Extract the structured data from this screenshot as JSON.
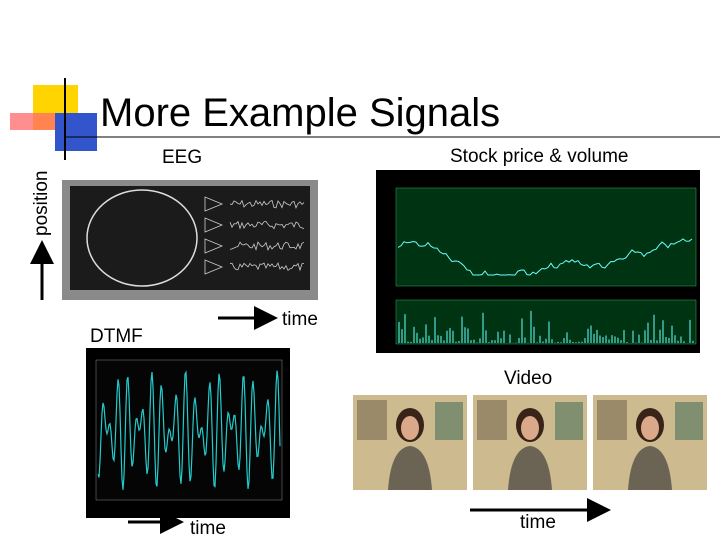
{
  "header": {
    "title": "More Example Signals"
  },
  "labels": {
    "eeg": "EEG",
    "stock": "Stock price & volume",
    "position": "position",
    "time_eeg": "time",
    "dtmf": "DTMF",
    "video": "Video",
    "time_dtmf": "time",
    "time_video": "time"
  }
}
